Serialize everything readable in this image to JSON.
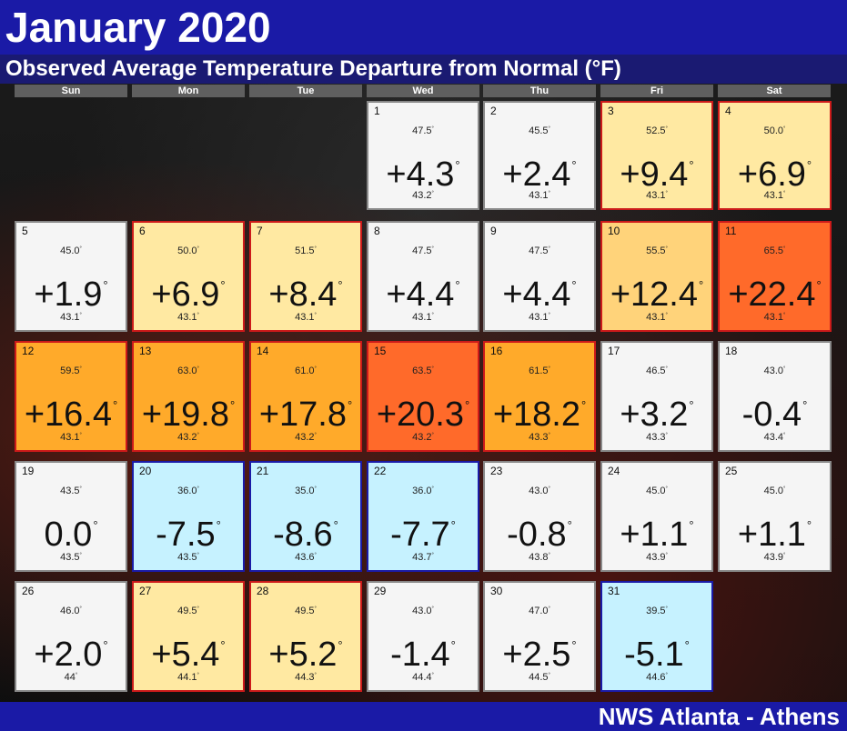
{
  "header": {
    "title": "January 2020",
    "subtitle": "Observed Average Temperature Departure from Normal (°F)"
  },
  "weekdays": [
    "Sun",
    "Mon",
    "Tue",
    "Wed",
    "Thu",
    "Fri",
    "Sat"
  ],
  "degree_symbol": "°",
  "colors": {
    "normal": "#f5f5f5",
    "warm": "#ffe9a2",
    "warmer": "#ffd37a",
    "hot": "#ffaa2a",
    "very_hot": "#ff6a2a",
    "cool": "#c6f2ff",
    "warm_border": "#cc1a1a",
    "cool_border": "#1a1aa6",
    "normal_border": "#888888"
  },
  "days": [
    {
      "day": "1",
      "observed": "47.5",
      "departure": "+4.3",
      "normal": "43.2",
      "category": "normal"
    },
    {
      "day": "2",
      "observed": "45.5",
      "departure": "+2.4",
      "normal": "43.1",
      "category": "normal"
    },
    {
      "day": "3",
      "observed": "52.5",
      "departure": "+9.4",
      "normal": "43.1",
      "category": "warm"
    },
    {
      "day": "4",
      "observed": "50.0",
      "departure": "+6.9",
      "normal": "43.1",
      "category": "warm"
    },
    {
      "day": "5",
      "observed": "45.0",
      "departure": "+1.9",
      "normal": "43.1",
      "category": "normal"
    },
    {
      "day": "6",
      "observed": "50.0",
      "departure": "+6.9",
      "normal": "43.1",
      "category": "warm"
    },
    {
      "day": "7",
      "observed": "51.5",
      "departure": "+8.4",
      "normal": "43.1",
      "category": "warm"
    },
    {
      "day": "8",
      "observed": "47.5",
      "departure": "+4.4",
      "normal": "43.1",
      "category": "normal"
    },
    {
      "day": "9",
      "observed": "47.5",
      "departure": "+4.4",
      "normal": "43.1",
      "category": "normal"
    },
    {
      "day": "10",
      "observed": "55.5",
      "departure": "+12.4",
      "normal": "43.1",
      "category": "warmer"
    },
    {
      "day": "11",
      "observed": "65.5",
      "departure": "+22.4",
      "normal": "43.1",
      "category": "very_hot"
    },
    {
      "day": "12",
      "observed": "59.5",
      "departure": "+16.4",
      "normal": "43.1",
      "category": "hot"
    },
    {
      "day": "13",
      "observed": "63.0",
      "departure": "+19.8",
      "normal": "43.2",
      "category": "hot"
    },
    {
      "day": "14",
      "observed": "61.0",
      "departure": "+17.8",
      "normal": "43.2",
      "category": "hot"
    },
    {
      "day": "15",
      "observed": "63.5",
      "departure": "+20.3",
      "normal": "43.2",
      "category": "very_hot"
    },
    {
      "day": "16",
      "observed": "61.5",
      "departure": "+18.2",
      "normal": "43.3",
      "category": "hot"
    },
    {
      "day": "17",
      "observed": "46.5",
      "departure": "+3.2",
      "normal": "43.3",
      "category": "normal"
    },
    {
      "day": "18",
      "observed": "43.0",
      "departure": "-0.4",
      "normal": "43.4",
      "category": "normal"
    },
    {
      "day": "19",
      "observed": "43.5",
      "departure": "0.0",
      "normal": "43.5",
      "category": "normal"
    },
    {
      "day": "20",
      "observed": "36.0",
      "departure": "-7.5",
      "normal": "43.5",
      "category": "cool"
    },
    {
      "day": "21",
      "observed": "35.0",
      "departure": "-8.6",
      "normal": "43.6",
      "category": "cool"
    },
    {
      "day": "22",
      "observed": "36.0",
      "departure": "-7.7",
      "normal": "43.7",
      "category": "cool"
    },
    {
      "day": "23",
      "observed": "43.0",
      "departure": "-0.8",
      "normal": "43.8",
      "category": "normal"
    },
    {
      "day": "24",
      "observed": "45.0",
      "departure": "+1.1",
      "normal": "43.9",
      "category": "normal"
    },
    {
      "day": "25",
      "observed": "45.0",
      "departure": "+1.1",
      "normal": "43.9",
      "category": "normal"
    },
    {
      "day": "26",
      "observed": "46.0",
      "departure": "+2.0",
      "normal": "44",
      "category": "normal"
    },
    {
      "day": "27",
      "observed": "49.5",
      "departure": "+5.4",
      "normal": "44.1",
      "category": "warm"
    },
    {
      "day": "28",
      "observed": "49.5",
      "departure": "+5.2",
      "normal": "44.3",
      "category": "warm"
    },
    {
      "day": "29",
      "observed": "43.0",
      "departure": "-1.4",
      "normal": "44.4",
      "category": "normal"
    },
    {
      "day": "30",
      "observed": "47.0",
      "departure": "+2.5",
      "normal": "44.5",
      "category": "normal"
    },
    {
      "day": "31",
      "observed": "39.5",
      "departure": "-5.1",
      "normal": "44.6",
      "category": "cool"
    }
  ],
  "first_weekday_index": 3,
  "footer": {
    "credit": "NWS Atlanta - Athens"
  }
}
